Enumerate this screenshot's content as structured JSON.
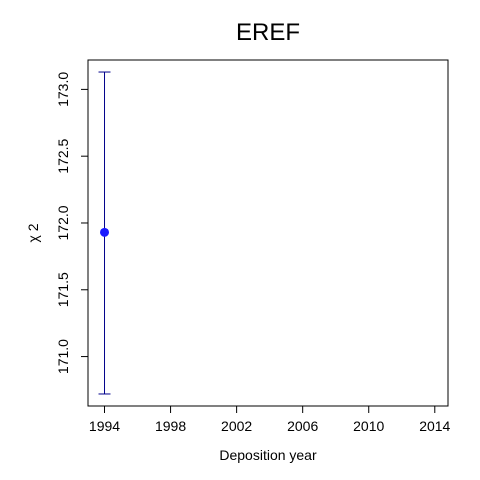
{
  "chart_data": {
    "type": "scatter",
    "title": "EREF",
    "xlabel": "Deposition year",
    "ylabel": "χ 2",
    "xlim": [
      1993,
      2014.8
    ],
    "ylim": [
      170.63,
      173.22
    ],
    "x_ticks": [
      1994,
      1998,
      2002,
      2006,
      2010,
      2014
    ],
    "x_tick_labels": [
      "1994",
      "1998",
      "2002",
      "2006",
      "2010",
      "2014"
    ],
    "y_ticks": [
      171.0,
      171.5,
      172.0,
      172.5,
      173.0
    ],
    "y_tick_labels": [
      "171.0",
      "171.5",
      "172.0",
      "172.5",
      "173.0"
    ],
    "grid": false,
    "series": [
      {
        "points": [
          {
            "x": 1994,
            "y": 171.93,
            "err_low": 170.72,
            "err_high": 173.13
          }
        ],
        "color": "#1a1aff",
        "errorbar_color": "#00008b"
      }
    ]
  }
}
